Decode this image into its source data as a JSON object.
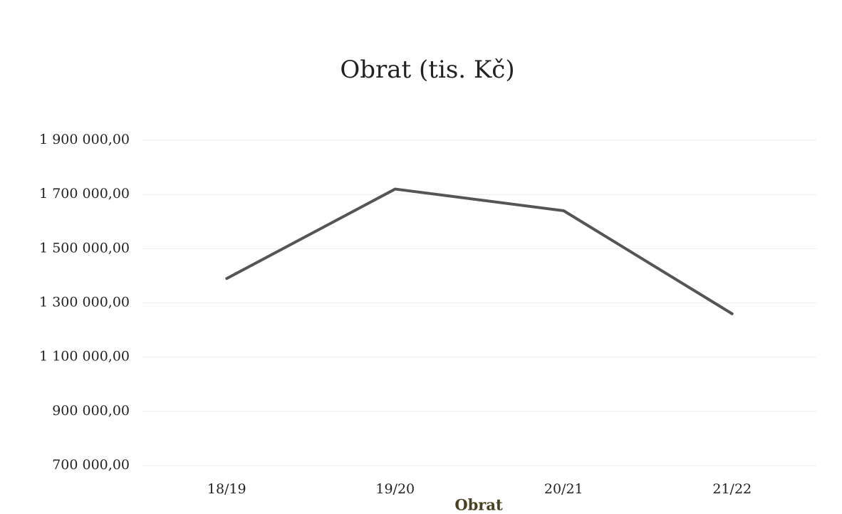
{
  "chart_data": {
    "type": "line",
    "title": "Obrat (tis. Kč)",
    "categories": [
      "18/19",
      "19/20",
      "20/21",
      "21/22"
    ],
    "series": [
      {
        "name": "Obrat",
        "color": "#555555",
        "values": [
          1390000,
          1720000,
          1640000,
          1260000
        ]
      }
    ],
    "ylim": [
      700000,
      1900000
    ],
    "yticks": [
      {
        "value": 700000,
        "label": "700 000,00"
      },
      {
        "value": 900000,
        "label": "900 000,00"
      },
      {
        "value": 1100000,
        "label": "1 100 000,00"
      },
      {
        "value": 1300000,
        "label": "1 300 000,00"
      },
      {
        "value": 1500000,
        "label": "1 500 000,00"
      },
      {
        "value": 1700000,
        "label": "1 700 000,00"
      },
      {
        "value": 1900000,
        "label": "1 900 000,00"
      }
    ],
    "grid": true,
    "legend": "bottom"
  }
}
